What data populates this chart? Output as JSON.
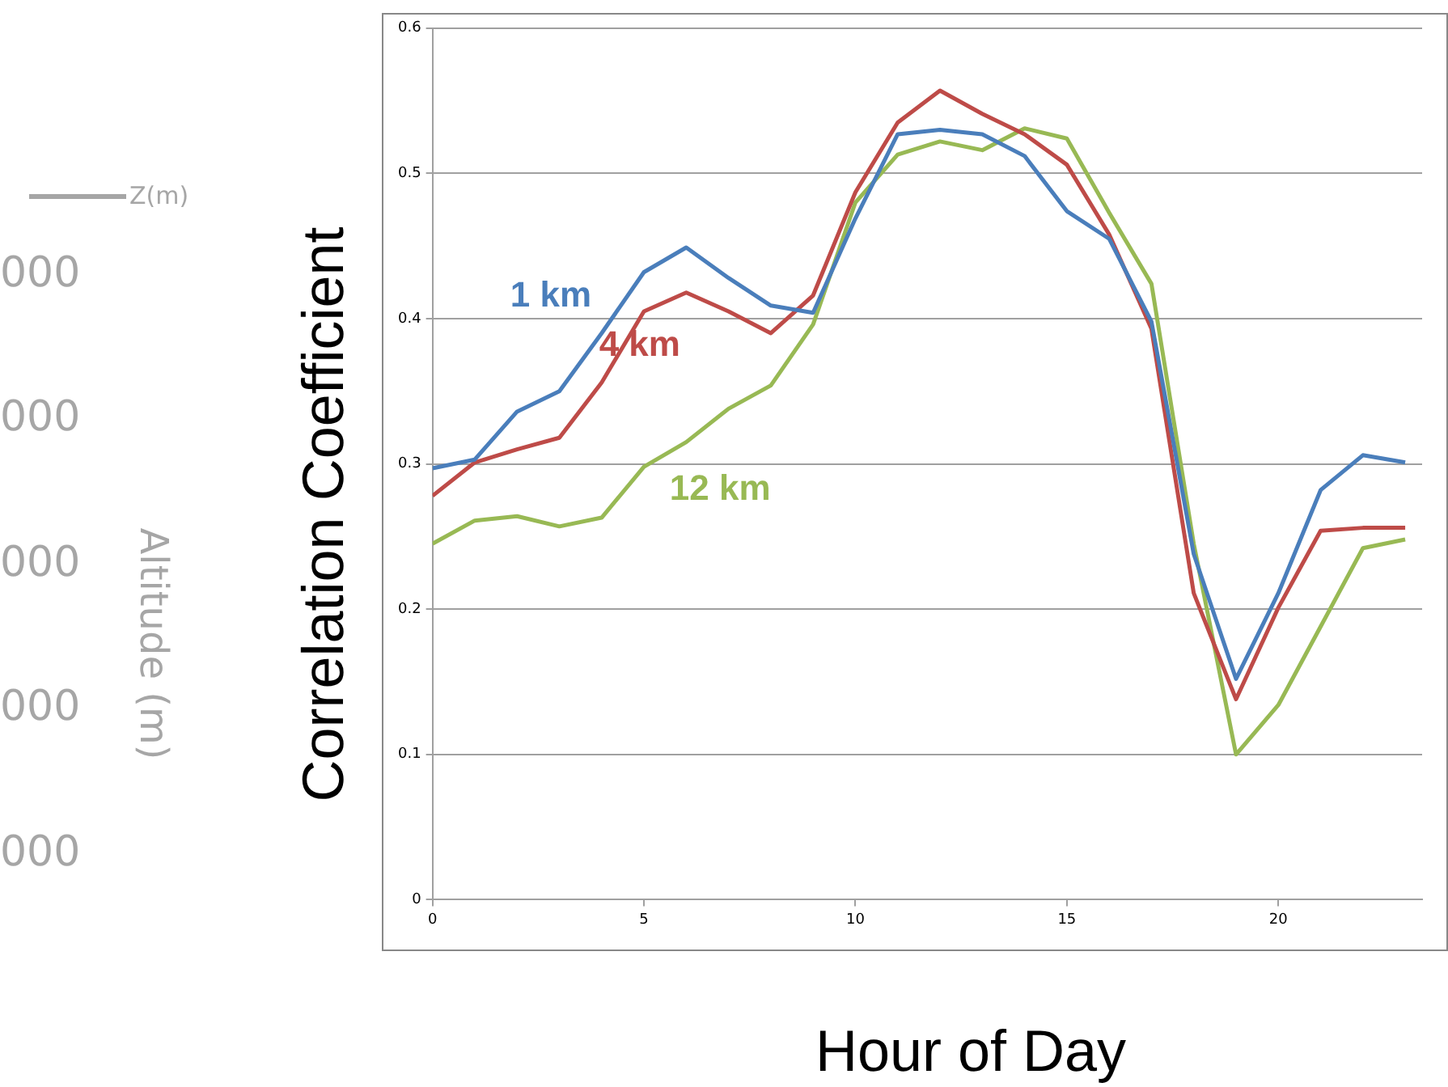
{
  "chart_data": [
    {
      "type": "line",
      "xlabel": "Hour of Day",
      "ylabel": "Correlation Coefficient",
      "x": [
        0,
        1,
        2,
        3,
        4,
        5,
        6,
        7,
        8,
        9,
        10,
        11,
        12,
        13,
        14,
        15,
        16,
        17,
        18,
        19,
        20,
        21,
        22,
        23
      ],
      "series": [
        {
          "name": "1 km",
          "color": "#4a7ebb",
          "values": [
            0.297,
            0.303,
            0.336,
            0.35,
            0.39,
            0.432,
            0.449,
            0.428,
            0.409,
            0.404,
            0.469,
            0.527,
            0.53,
            0.527,
            0.512,
            0.474,
            0.455,
            0.398,
            0.238,
            0.152,
            0.211,
            0.282,
            0.306,
            0.301
          ]
        },
        {
          "name": "4 km",
          "color": "#be4b48",
          "values": [
            0.278,
            0.301,
            0.31,
            0.318,
            0.356,
            0.405,
            0.418,
            0.405,
            0.39,
            0.416,
            0.487,
            0.535,
            0.557,
            0.541,
            0.527,
            0.506,
            0.458,
            0.393,
            0.211,
            0.138,
            0.201,
            0.254,
            0.256,
            0.256
          ]
        },
        {
          "name": "12 km",
          "color": "#98b954",
          "values": [
            0.245,
            0.261,
            0.264,
            0.257,
            0.263,
            0.298,
            0.315,
            0.338,
            0.354,
            0.396,
            0.48,
            0.513,
            0.522,
            0.516,
            0.531,
            0.524,
            0.473,
            0.424,
            0.245,
            0.1,
            0.134,
            0.188,
            0.242,
            0.248
          ]
        }
      ],
      "xlim": [
        0,
        23.4
      ],
      "xticks": [
        0,
        5,
        10,
        15,
        20
      ],
      "ylim": [
        0,
        0.6
      ],
      "yticks": [
        0,
        0.1,
        0.2,
        0.3,
        0.4,
        0.5,
        0.6
      ],
      "grid": "y",
      "legend": false,
      "marker": "none",
      "line_style": "solid"
    },
    {
      "type": "other",
      "ylabel": "Altitude (m)",
      "legend": "top",
      "series": [
        {
          "name": "Z(m)",
          "color": "#a6a6a6"
        }
      ],
      "annotations": [
        "000",
        "000",
        "000",
        "000",
        "000"
      ]
    }
  ]
}
